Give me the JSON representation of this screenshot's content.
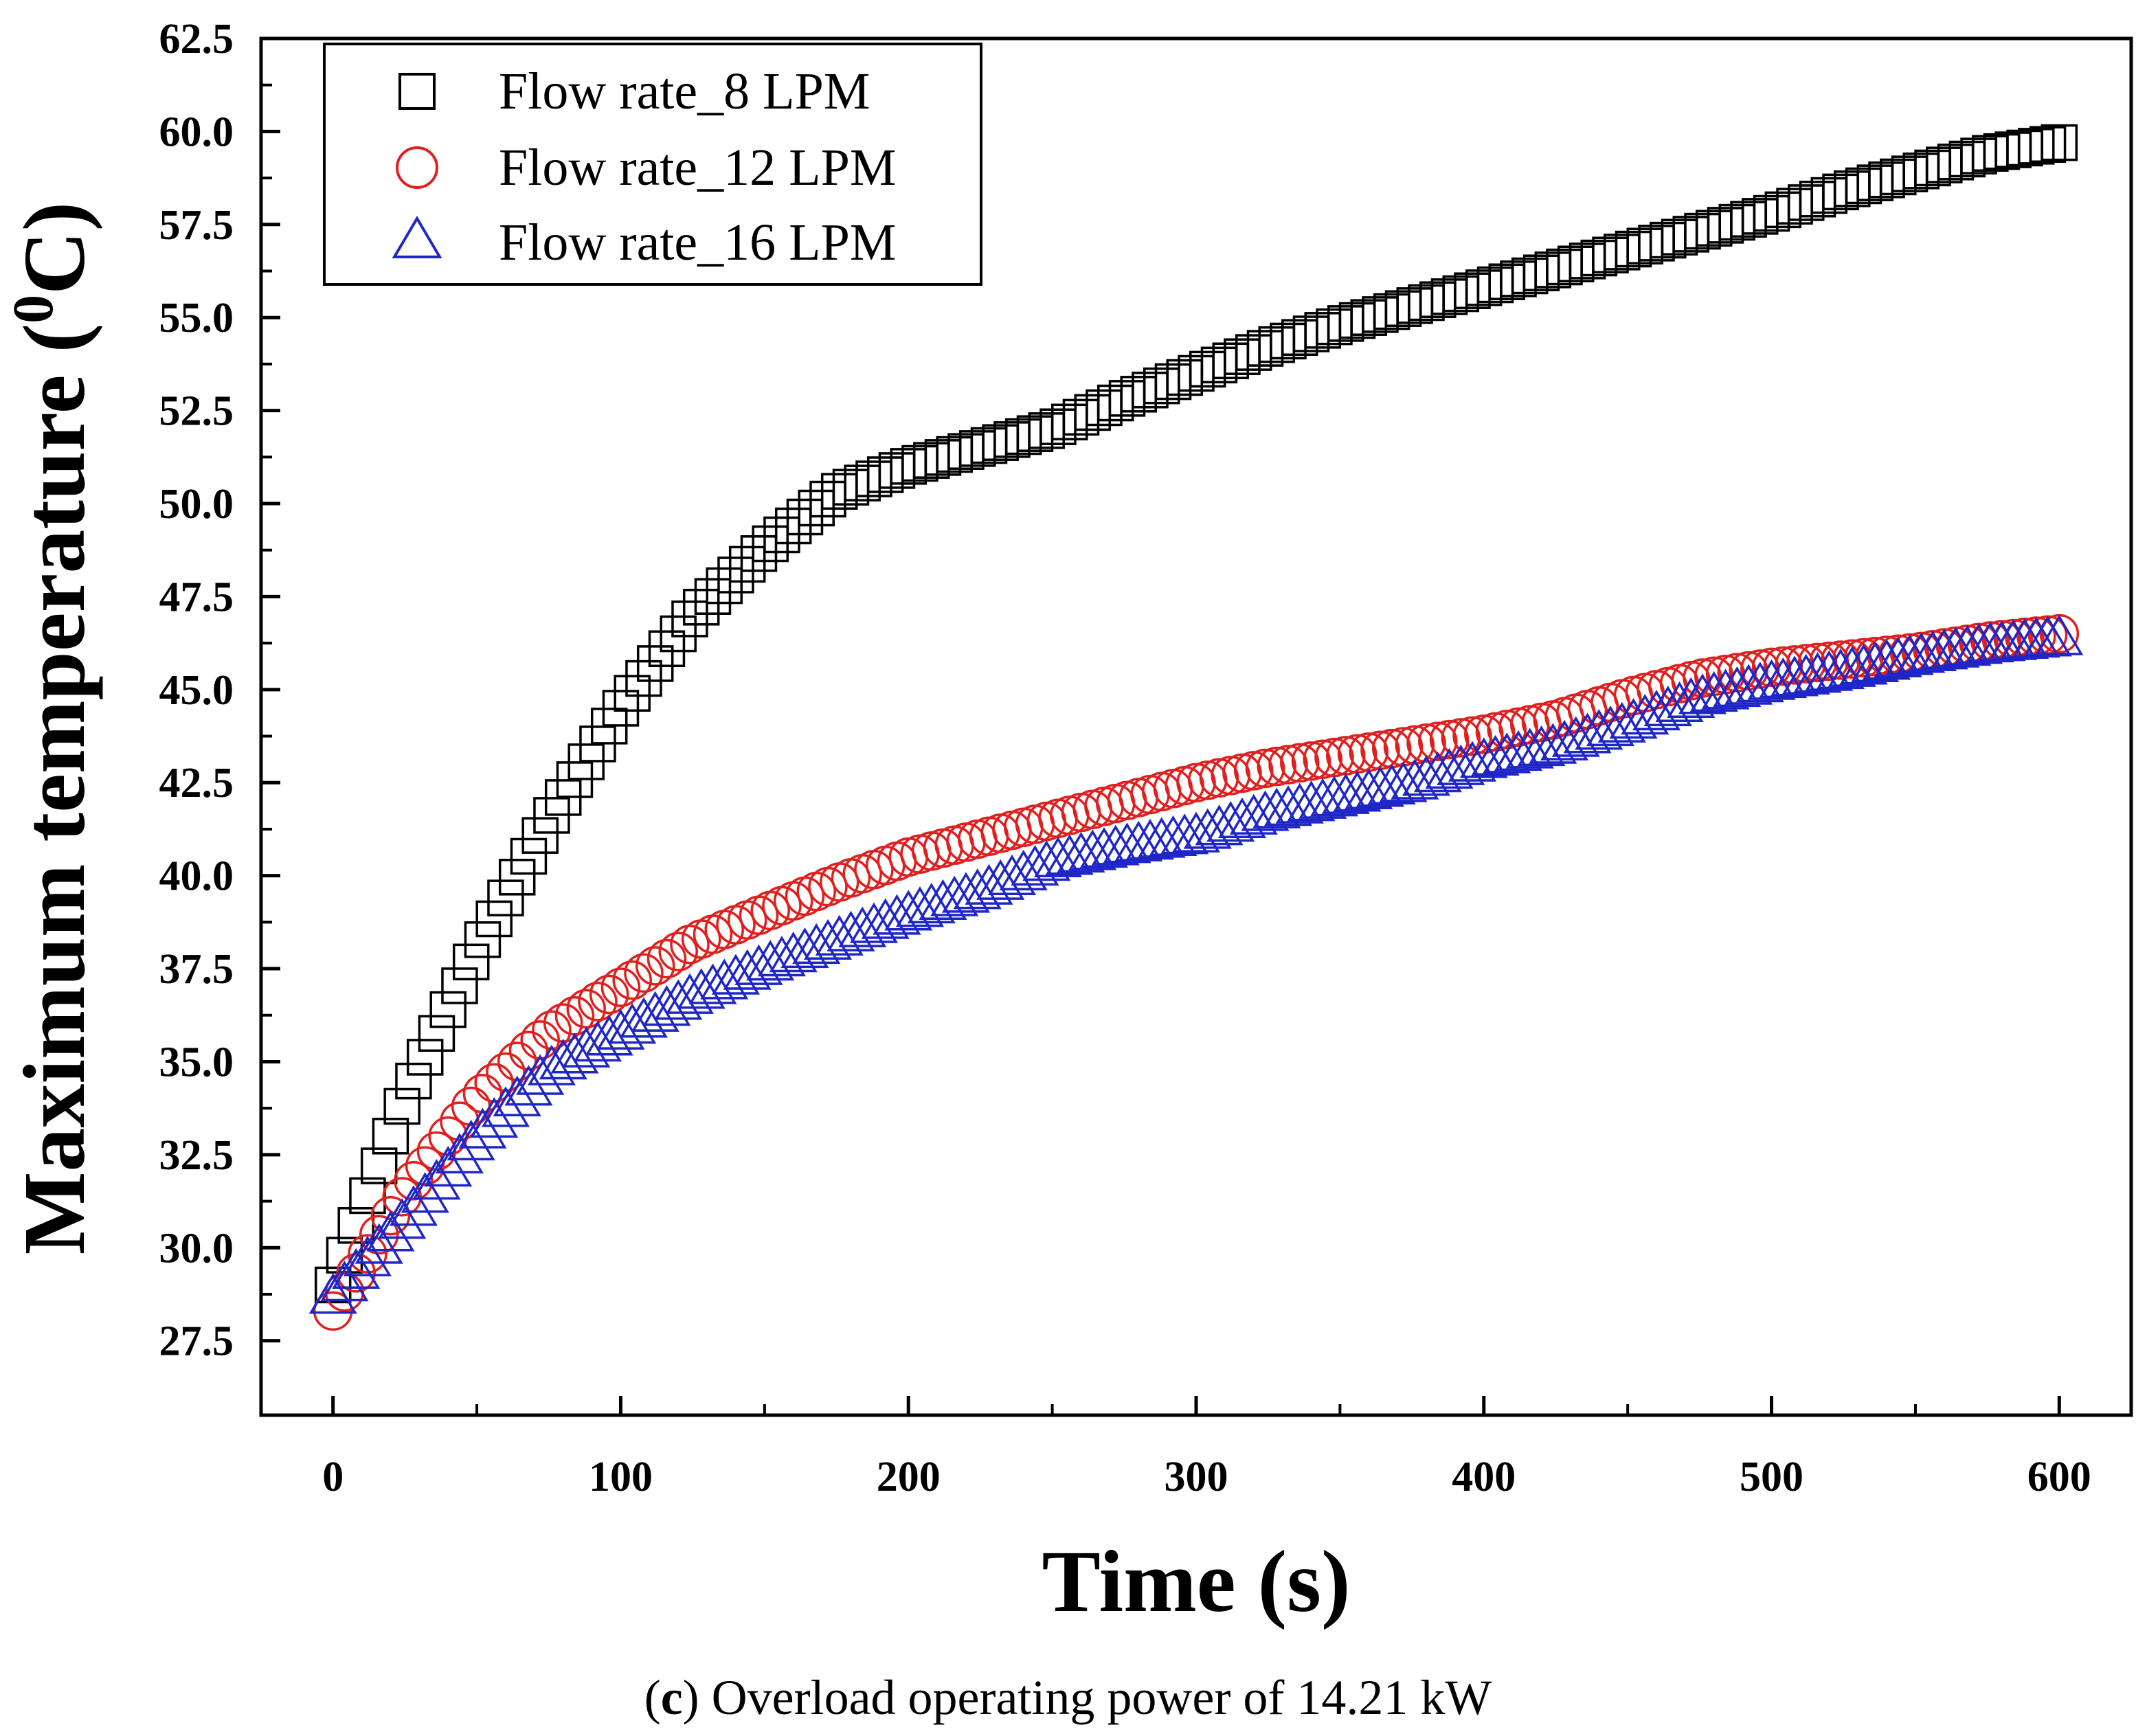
{
  "chart_data": {
    "type": "scatter",
    "title": "",
    "xlabel": "Time (s)",
    "ylabel": "Maximum temperature (",
    "ylabel_sup": "0",
    "ylabel_unit": "C)",
    "xlim": [
      -25,
      625
    ],
    "ylim": [
      25.5,
      62.5
    ],
    "xticks": [
      0,
      100,
      200,
      300,
      400,
      500,
      600
    ],
    "yticks": [
      27.5,
      30.0,
      32.5,
      35.0,
      37.5,
      40.0,
      42.5,
      45.0,
      47.5,
      50.0,
      52.5,
      55.0,
      57.5,
      60.0,
      62.5
    ],
    "ytick_labels": [
      "27.5",
      "30.0",
      "32.5",
      "35.0",
      "37.5",
      "40.0",
      "42.5",
      "45.0",
      "47.5",
      "50.0",
      "52.5",
      "55.0",
      "57.5",
      "60.0",
      "62.5"
    ],
    "legend_position": "top-left",
    "series": [
      {
        "name": "Flow rate_8 LPM",
        "marker": "square",
        "color": "#000000",
        "x": [
          0,
          25,
          50,
          75,
          100,
          125,
          150,
          175,
          200,
          225,
          250,
          275,
          300,
          325,
          350,
          375,
          400,
          425,
          450,
          475,
          500,
          525,
          550,
          575,
          600
        ],
        "y": [
          29.0,
          34.0,
          38.0,
          41.5,
          44.5,
          47.0,
          48.8,
          50.3,
          51.0,
          51.5,
          52.0,
          52.8,
          53.5,
          54.2,
          54.8,
          55.3,
          55.8,
          56.3,
          56.8,
          57.3,
          57.8,
          58.4,
          58.9,
          59.4,
          59.7
        ]
      },
      {
        "name": "Flow rate_12 LPM",
        "marker": "circle",
        "color": "#e0201e",
        "x": [
          0,
          25,
          50,
          75,
          100,
          125,
          150,
          175,
          200,
          225,
          250,
          275,
          300,
          325,
          350,
          375,
          400,
          425,
          450,
          475,
          500,
          525,
          550,
          575,
          600
        ],
        "y": [
          28.3,
          31.5,
          34.0,
          35.8,
          37.0,
          38.2,
          39.0,
          39.8,
          40.5,
          41.0,
          41.5,
          42.0,
          42.5,
          42.9,
          43.2,
          43.5,
          43.8,
          44.2,
          44.8,
          45.3,
          45.6,
          45.8,
          46.0,
          46.3,
          46.5
        ]
      },
      {
        "name": "Flow rate_16 LPM",
        "marker": "triangle",
        "color": "#1f26c8",
        "x": [
          0,
          25,
          50,
          75,
          100,
          125,
          150,
          175,
          200,
          225,
          250,
          275,
          300,
          325,
          350,
          375,
          400,
          425,
          450,
          475,
          500,
          525,
          550,
          575,
          600
        ],
        "y": [
          28.7,
          30.8,
          33.0,
          34.8,
          35.8,
          36.8,
          37.6,
          38.3,
          39.0,
          39.6,
          40.4,
          40.8,
          41.1,
          41.7,
          42.1,
          42.5,
          43.1,
          43.5,
          44.1,
          44.8,
          45.2,
          45.5,
          45.9,
          46.2,
          46.4
        ]
      }
    ],
    "caption_label": "c",
    "caption_text": " Overload operating power of 14.21 kW"
  }
}
